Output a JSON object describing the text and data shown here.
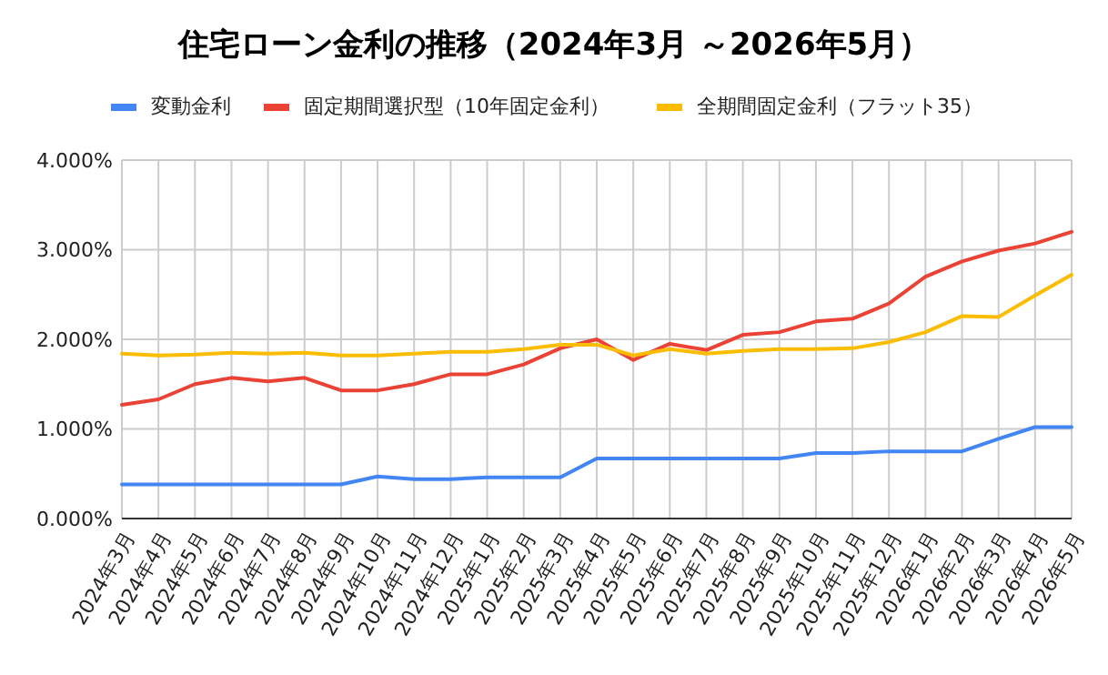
{
  "chart_data": {
    "type": "line",
    "title": "住宅ローン金利の推移（2024年3月 ～2026年5月）",
    "categories": [
      "2024年3月",
      "2024年4月",
      "2024年5月",
      "2024年6月",
      "2024年7月",
      "2024年8月",
      "2024年9月",
      "2024年10月",
      "2024年11月",
      "2024年12月",
      "2025年1月",
      "2025年2月",
      "2025年3月",
      "2025年4月",
      "2025年5月",
      "2025年6月",
      "2025年7月",
      "2025年8月",
      "2025年9月",
      "2025年10月",
      "2025年11月",
      "2025年12月",
      "2026年1月",
      "2026年2月",
      "2026年3月",
      "2026年4月",
      "2026年5月"
    ],
    "series": [
      {
        "name": "変動金利",
        "color": "#4285f4",
        "values": [
          0.38,
          0.38,
          0.38,
          0.38,
          0.38,
          0.38,
          0.38,
          0.47,
          0.44,
          0.44,
          0.46,
          0.46,
          0.46,
          0.67,
          0.67,
          0.67,
          0.67,
          0.67,
          0.67,
          0.73,
          0.73,
          0.75,
          0.75,
          0.75,
          0.89,
          1.02,
          1.02
        ]
      },
      {
        "name": "固定期間選択型（10年固定金利）",
        "color": "#ea4335",
        "values": [
          1.27,
          1.33,
          1.5,
          1.57,
          1.53,
          1.57,
          1.43,
          1.43,
          1.5,
          1.61,
          1.61,
          1.72,
          1.9,
          2.0,
          1.77,
          1.95,
          1.88,
          2.05,
          2.08,
          2.2,
          2.23,
          2.4,
          2.7,
          2.87,
          2.99,
          3.07,
          3.2
        ]
      },
      {
        "name": "全期間固定金利（フラット35）",
        "color": "#fbbc04",
        "values": [
          1.84,
          1.82,
          1.83,
          1.85,
          1.84,
          1.85,
          1.82,
          1.82,
          1.84,
          1.86,
          1.86,
          1.89,
          1.94,
          1.94,
          1.82,
          1.89,
          1.84,
          1.87,
          1.89,
          1.89,
          1.9,
          1.97,
          2.08,
          2.26,
          2.25,
          2.49,
          2.72
        ]
      }
    ],
    "ylim": [
      0,
      4
    ],
    "yticks": [
      {
        "value": 0,
        "label": "0.000%"
      },
      {
        "value": 1,
        "label": "1.000%"
      },
      {
        "value": 2,
        "label": "2.000%"
      },
      {
        "value": 3,
        "label": "3.000%"
      },
      {
        "value": 4,
        "label": "4.000%"
      }
    ],
    "grid": true,
    "legend": "top",
    "marker": "none",
    "line_style": "solid"
  }
}
